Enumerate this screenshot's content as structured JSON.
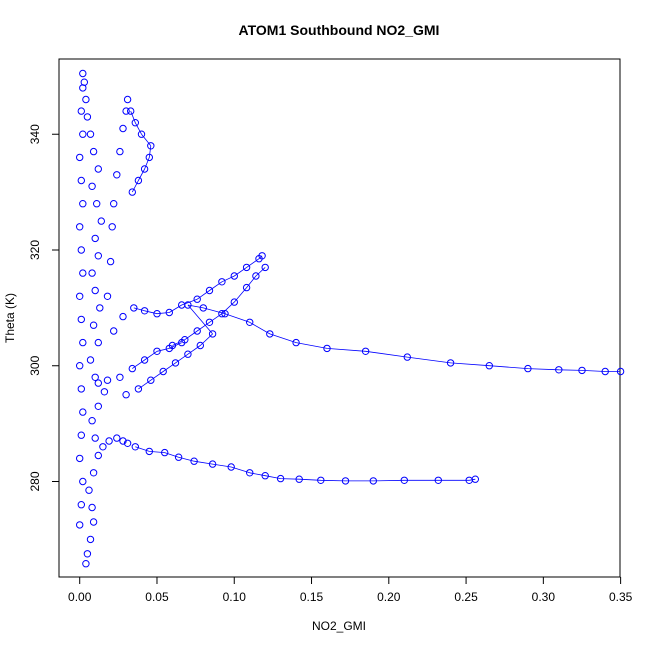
{
  "chart_data": {
    "type": "scatter",
    "title": "ATOM1 Southbound NO2_GMI",
    "xlabel": "NO2_GMI",
    "ylabel": "Theta (K)",
    "xlim": [
      -0.0134,
      0.3496
    ],
    "ylim": [
      263.5,
      353.0
    ],
    "xticks": [
      0.0,
      0.05,
      0.1,
      0.15,
      0.2,
      0.25,
      0.3,
      0.35
    ],
    "xtick_labels": [
      "0.00",
      "0.05",
      "0.10",
      "0.15",
      "0.20",
      "0.25",
      "0.30",
      "0.35"
    ],
    "yticks": [
      280,
      300,
      320,
      340
    ],
    "ytick_labels": [
      "280",
      "300",
      "320",
      "340"
    ],
    "grid": false,
    "legend": "none",
    "color": "#0000ff",
    "marker": "open-circle",
    "series": [
      {
        "name": "",
        "points": [
          [
            0.004,
            265.8
          ],
          [
            0.005,
            267.5
          ],
          [
            0.007,
            270.0
          ],
          [
            0.009,
            273.0
          ],
          [
            0.008,
            275.5
          ],
          [
            0.006,
            278.5
          ],
          [
            0.009,
            281.5
          ],
          [
            0.012,
            284.5
          ],
          [
            0.01,
            287.5
          ],
          [
            0.008,
            290.5
          ],
          [
            0.012,
            293.0
          ],
          [
            0.016,
            295.5
          ],
          [
            0.01,
            298.0
          ],
          [
            0.007,
            301.0
          ],
          [
            0.012,
            304.0
          ],
          [
            0.009,
            307.0
          ],
          [
            0.013,
            310.0
          ],
          [
            0.01,
            313.0
          ],
          [
            0.008,
            316.0
          ],
          [
            0.012,
            319.0
          ],
          [
            0.01,
            322.0
          ],
          [
            0.014,
            325.0
          ],
          [
            0.011,
            328.0
          ],
          [
            0.008,
            331.0
          ],
          [
            0.012,
            334.0
          ],
          [
            0.009,
            337.0
          ],
          [
            0.007,
            340.0
          ],
          [
            0.005,
            343.0
          ],
          [
            0.004,
            346.0
          ],
          [
            0.003,
            349.0
          ],
          [
            0.002,
            350.5
          ],
          [
            0.0,
            272.5
          ],
          [
            0.001,
            276.0
          ],
          [
            0.002,
            280.0
          ],
          [
            0.0,
            284.0
          ],
          [
            0.001,
            288.0
          ],
          [
            0.002,
            292.0
          ],
          [
            0.001,
            296.0
          ],
          [
            0.0,
            300.0
          ],
          [
            0.002,
            304.0
          ],
          [
            0.001,
            308.0
          ],
          [
            0.0,
            312.0
          ],
          [
            0.002,
            316.0
          ],
          [
            0.001,
            320.0
          ],
          [
            0.0,
            324.0
          ],
          [
            0.002,
            328.0
          ],
          [
            0.001,
            332.0
          ],
          [
            0.0,
            336.0
          ],
          [
            0.002,
            340.0
          ],
          [
            0.001,
            344.0
          ],
          [
            0.002,
            348.0
          ],
          [
            0.018,
            312.0
          ],
          [
            0.02,
            318.0
          ],
          [
            0.021,
            324.0
          ],
          [
            0.022,
            328.0
          ],
          [
            0.024,
            333.0
          ],
          [
            0.026,
            337.0
          ],
          [
            0.028,
            341.0
          ],
          [
            0.03,
            344.0
          ],
          [
            0.031,
            346.0
          ],
          [
            0.034,
            330.0
          ],
          [
            0.038,
            332.0
          ],
          [
            0.042,
            334.0
          ],
          [
            0.045,
            336.0
          ],
          [
            0.046,
            338.0
          ],
          [
            0.04,
            340.0
          ],
          [
            0.036,
            342.0
          ],
          [
            0.033,
            344.0
          ],
          [
            0.015,
            286.0
          ],
          [
            0.019,
            287.0
          ],
          [
            0.024,
            287.5
          ],
          [
            0.028,
            287.0
          ],
          [
            0.031,
            286.6
          ],
          [
            0.022,
            306.0
          ],
          [
            0.028,
            308.5
          ],
          [
            0.035,
            310.0
          ],
          [
            0.042,
            309.5
          ],
          [
            0.05,
            309.0
          ],
          [
            0.058,
            309.2
          ],
          [
            0.066,
            310.5
          ],
          [
            0.076,
            311.5
          ],
          [
            0.084,
            313.0
          ],
          [
            0.092,
            314.5
          ],
          [
            0.1,
            315.5
          ],
          [
            0.108,
            317.0
          ],
          [
            0.116,
            318.5
          ],
          [
            0.118,
            319.0
          ],
          [
            0.06,
            303.5
          ],
          [
            0.068,
            304.5
          ],
          [
            0.076,
            306.0
          ],
          [
            0.084,
            307.5
          ],
          [
            0.092,
            309.0
          ],
          [
            0.1,
            311.0
          ],
          [
            0.108,
            313.5
          ],
          [
            0.114,
            315.5
          ],
          [
            0.12,
            317.0
          ],
          [
            0.012,
            297.0
          ],
          [
            0.018,
            297.5
          ],
          [
            0.026,
            298.0
          ],
          [
            0.034,
            299.5
          ],
          [
            0.042,
            301.0
          ],
          [
            0.05,
            302.5
          ],
          [
            0.058,
            303.0
          ],
          [
            0.066,
            304.0
          ],
          [
            0.03,
            295.0
          ],
          [
            0.038,
            296.0
          ],
          [
            0.046,
            297.5
          ],
          [
            0.054,
            299.0
          ],
          [
            0.062,
            300.5
          ],
          [
            0.07,
            302.0
          ],
          [
            0.078,
            303.5
          ],
          [
            0.086,
            305.5
          ],
          [
            0.07,
            310.5
          ],
          [
            0.08,
            310.0
          ],
          [
            0.094,
            309.0
          ],
          [
            0.11,
            307.5
          ],
          [
            0.123,
            305.5
          ],
          [
            0.14,
            304.0
          ],
          [
            0.16,
            303.0
          ],
          [
            0.185,
            302.5
          ],
          [
            0.212,
            301.5
          ],
          [
            0.24,
            300.5
          ],
          [
            0.265,
            300.0
          ],
          [
            0.29,
            299.5
          ],
          [
            0.31,
            299.3
          ],
          [
            0.325,
            299.2
          ],
          [
            0.34,
            299.0
          ],
          [
            0.35,
            299.0
          ],
          [
            0.036,
            286.0
          ],
          [
            0.045,
            285.2
          ],
          [
            0.055,
            285.0
          ],
          [
            0.064,
            284.2
          ],
          [
            0.074,
            283.5
          ],
          [
            0.086,
            283.0
          ],
          [
            0.098,
            282.5
          ],
          [
            0.11,
            281.5
          ],
          [
            0.12,
            281.0
          ],
          [
            0.13,
            280.5
          ],
          [
            0.142,
            280.4
          ],
          [
            0.156,
            280.2
          ],
          [
            0.172,
            280.1
          ],
          [
            0.19,
            280.1
          ],
          [
            0.21,
            280.2
          ],
          [
            0.232,
            280.2
          ],
          [
            0.252,
            280.2
          ],
          [
            0.256,
            280.4
          ]
        ]
      }
    ]
  }
}
